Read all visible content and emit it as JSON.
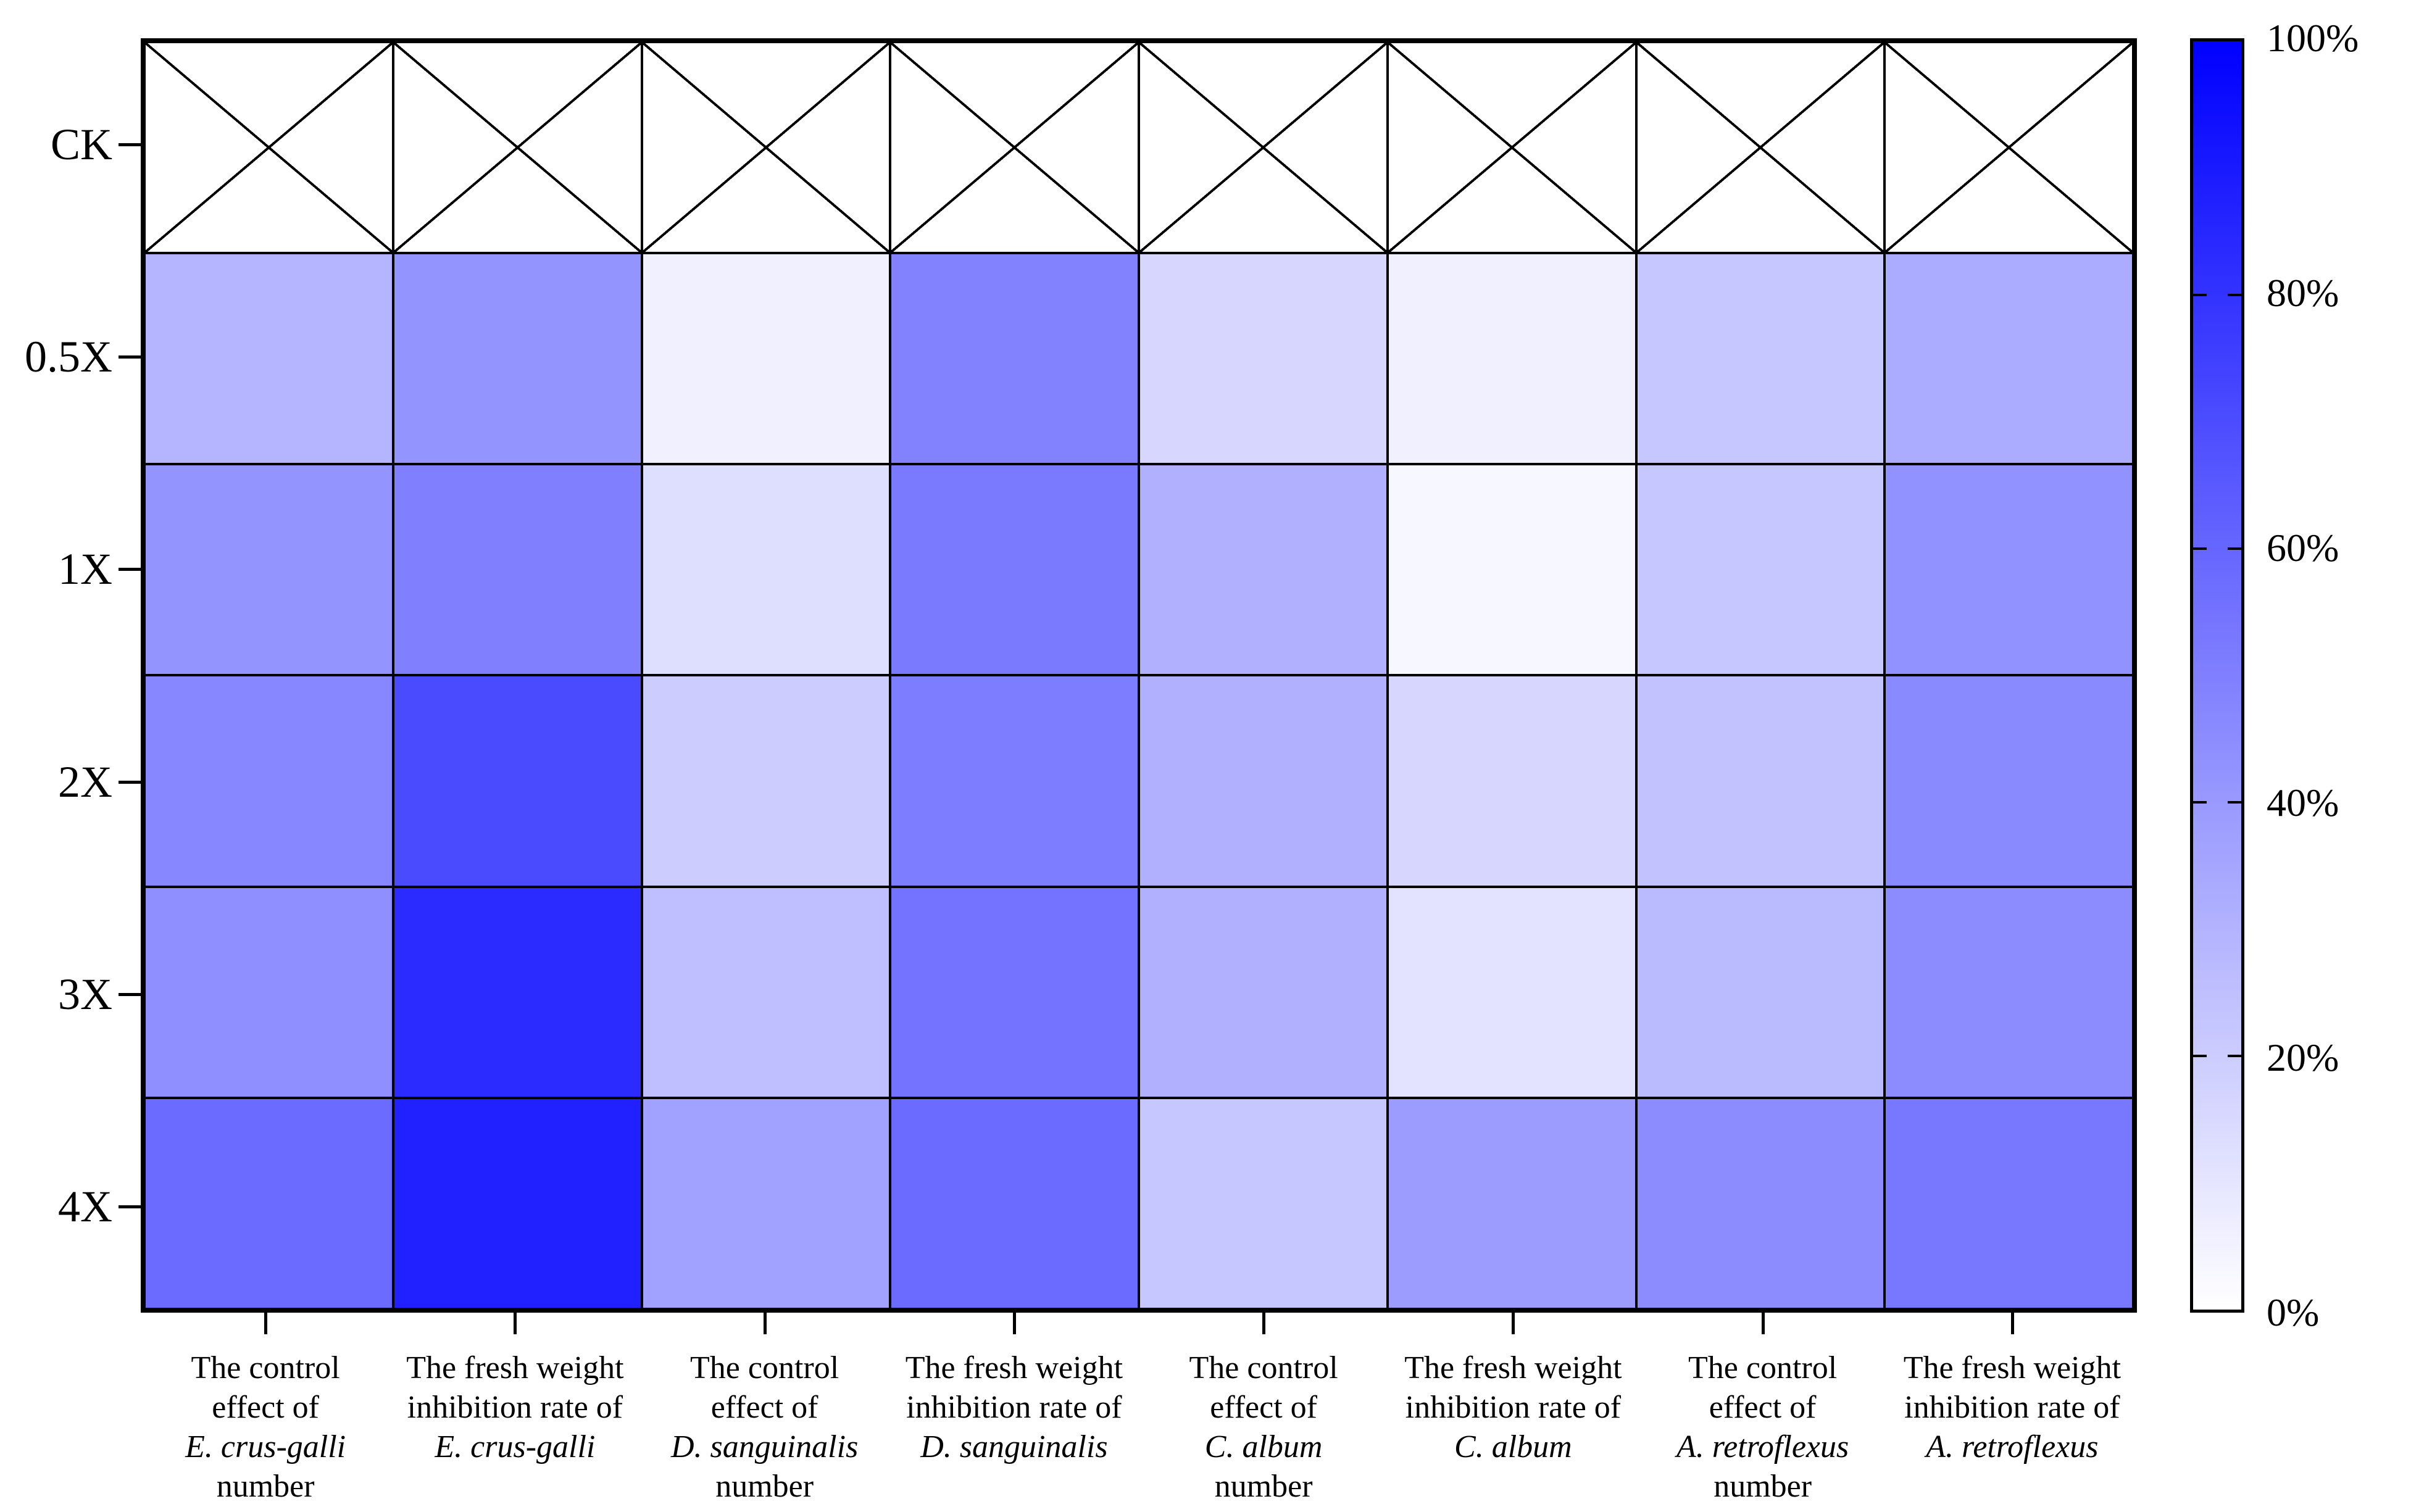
{
  "figure": {
    "background_color": "#ffffff",
    "grid_line_color": "#000000",
    "missing_cell_marker": "X"
  },
  "chart_data": {
    "type": "heatmap",
    "title": "",
    "xlabel": "",
    "ylabel": "",
    "legend_position": "right-colorbar",
    "grid": true,
    "rows": [
      "CK",
      "0.5X",
      "1X",
      "2X",
      "3X",
      "4X"
    ],
    "columns": [
      {
        "lines": [
          {
            "text": "The control",
            "italic": false
          },
          {
            "text": "effect of",
            "italic": false
          },
          {
            "text": "E. crus-galli",
            "italic": true
          },
          {
            "text": "number",
            "italic": false
          }
        ]
      },
      {
        "lines": [
          {
            "text": "The fresh weight",
            "italic": false
          },
          {
            "text": "inhibition rate of",
            "italic": false
          },
          {
            "text": "E. crus-galli",
            "italic": true
          }
        ]
      },
      {
        "lines": [
          {
            "text": "The control",
            "italic": false
          },
          {
            "text": "effect of",
            "italic": false
          },
          {
            "text": "D. sanguinalis",
            "italic": true
          },
          {
            "text": "number",
            "italic": false
          }
        ]
      },
      {
        "lines": [
          {
            "text": "The fresh weight",
            "italic": false
          },
          {
            "text": "inhibition rate of",
            "italic": false
          },
          {
            "text": "D. sanguinalis",
            "italic": true
          }
        ]
      },
      {
        "lines": [
          {
            "text": "The control",
            "italic": false
          },
          {
            "text": "effect of",
            "italic": false
          },
          {
            "text": "C. album",
            "italic": true
          },
          {
            "text": "number",
            "italic": false
          }
        ]
      },
      {
        "lines": [
          {
            "text": "The fresh weight",
            "italic": false
          },
          {
            "text": "inhibition rate of",
            "italic": false
          },
          {
            "text": "C. album",
            "italic": true
          }
        ]
      },
      {
        "lines": [
          {
            "text": "The control",
            "italic": false
          },
          {
            "text": "effect of",
            "italic": false
          },
          {
            "text": "A. retroflexus",
            "italic": true
          },
          {
            "text": "number",
            "italic": false
          }
        ]
      },
      {
        "lines": [
          {
            "text": "The fresh weight",
            "italic": false
          },
          {
            "text": "inhibition rate of",
            "italic": false
          },
          {
            "text": "A. retroflexus",
            "italic": true
          }
        ]
      }
    ],
    "values_percent": [
      [
        null,
        null,
        null,
        null,
        null,
        null,
        null,
        null
      ],
      [
        29,
        42,
        6,
        49,
        16,
        6,
        22,
        33
      ],
      [
        42,
        50,
        13,
        52,
        31,
        3,
        22,
        43
      ],
      [
        47,
        71,
        20,
        51,
        31,
        16,
        24,
        46
      ],
      [
        44,
        83,
        25,
        55,
        31,
        11,
        27,
        45
      ],
      [
        58,
        87,
        37,
        58,
        22,
        39,
        45,
        53
      ]
    ],
    "colorbar": {
      "tick_labels": [
        "100%",
        "80%",
        "60%",
        "40%",
        "20%",
        "0%"
      ],
      "min": 0,
      "max": 100,
      "min_color": "#ffffff",
      "max_color": "#0000ff"
    }
  }
}
